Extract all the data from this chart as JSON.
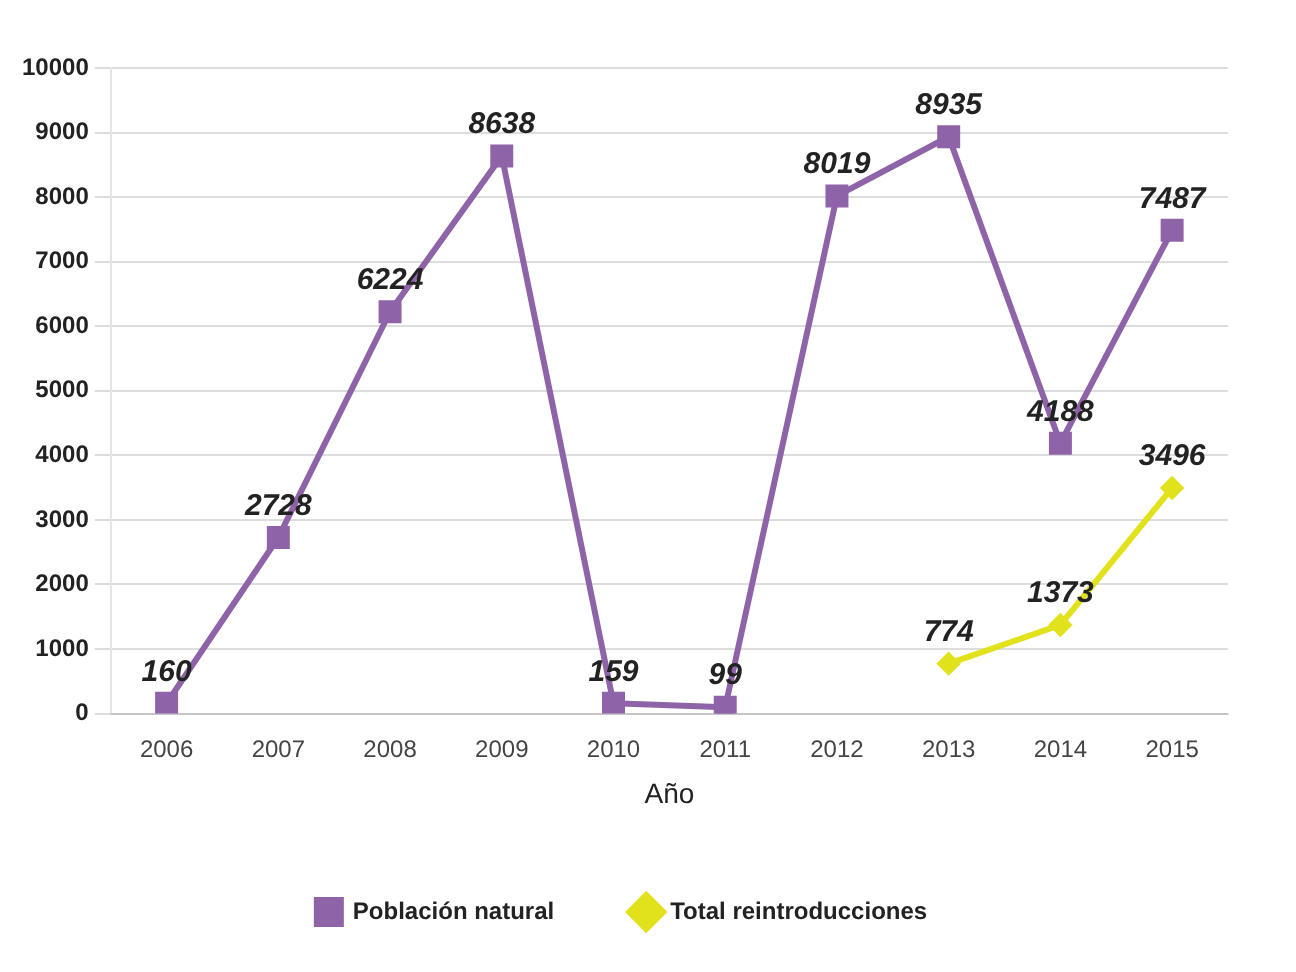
{
  "chart_data": {
    "type": "line",
    "xlabel": "Año",
    "categories": [
      "2006",
      "2007",
      "2008",
      "2009",
      "2010",
      "2011",
      "2012",
      "2013",
      "2014",
      "2015"
    ],
    "series": [
      {
        "name": "Población natural",
        "color": "#8e63a8",
        "marker": "square",
        "values": [
          160,
          2728,
          6224,
          8638,
          159,
          99,
          8019,
          8935,
          4188,
          7487
        ]
      },
      {
        "name": "Total reintroducciones",
        "color": "#e2e21c",
        "marker": "diamond",
        "values": [
          null,
          null,
          null,
          null,
          null,
          null,
          null,
          774,
          1373,
          3496
        ]
      }
    ],
    "ylim": [
      0,
      10000
    ],
    "yticks": [
      0,
      1000,
      2000,
      3000,
      4000,
      5000,
      6000,
      7000,
      8000,
      9000,
      10000
    ],
    "grid": "y",
    "legend": "bottom",
    "data_labels": true
  }
}
